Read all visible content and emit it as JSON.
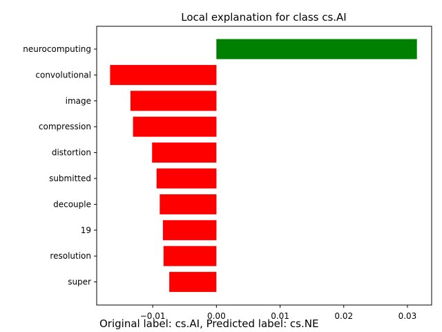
{
  "chart_data": {
    "type": "bar",
    "orientation": "horizontal",
    "title": "Local explanation for class cs.AI",
    "xlabel": "",
    "ylabel": "",
    "categories": [
      "neurocomputing",
      "convolutional",
      "image",
      "compression",
      "distortion",
      "submitted",
      "decouple",
      "19",
      "resolution",
      "super"
    ],
    "values": [
      0.0315,
      -0.0167,
      -0.0135,
      -0.0131,
      -0.0101,
      -0.0094,
      -0.0089,
      -0.0084,
      -0.0083,
      -0.0074
    ],
    "xlim": [
      -0.0188,
      0.0338
    ],
    "xticks": [
      -0.01,
      0.0,
      0.01,
      0.02,
      0.03
    ],
    "xtick_labels": [
      "−0.01",
      "0.00",
      "0.01",
      "0.02",
      "0.03"
    ],
    "colors": {
      "positive": "#008000",
      "negative": "#ff0000"
    },
    "grid": false,
    "legend": "none"
  },
  "footer_text": "Original label: cs.AI, Predicted label: cs.NE"
}
